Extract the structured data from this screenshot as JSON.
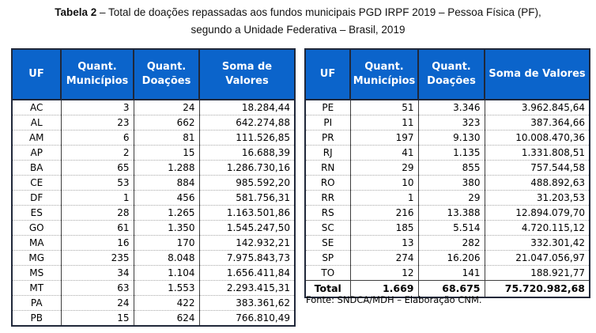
{
  "title": {
    "bold": "Tabela 2",
    "line1_rest": " – Total de doações repassadas aos fundos municipais PGD IRPF 2019 – Pessoa Física (PF),",
    "line2": "segundo a Unidade Federativa – Brasil, 2019"
  },
  "columns": [
    "UF",
    "Quant. Municípios",
    "Quant. Doações",
    "Soma de Valores"
  ],
  "left_table": {
    "rows": [
      [
        "AC",
        "3",
        "24",
        "18.284,44"
      ],
      [
        "AL",
        "23",
        "662",
        "642.274,88"
      ],
      [
        "AM",
        "6",
        "81",
        "111.526,85"
      ],
      [
        "AP",
        "2",
        "15",
        "16.688,39"
      ],
      [
        "BA",
        "65",
        "1.288",
        "1.286.730,16"
      ],
      [
        "CE",
        "53",
        "884",
        "985.592,20"
      ],
      [
        "DF",
        "1",
        "456",
        "581.756,31"
      ],
      [
        "ES",
        "28",
        "1.265",
        "1.163.501,86"
      ],
      [
        "GO",
        "61",
        "1.350",
        "1.545.247,50"
      ],
      [
        "MA",
        "16",
        "170",
        "142.932,21"
      ],
      [
        "MG",
        "235",
        "8.048",
        "7.975.843,73"
      ],
      [
        "MS",
        "34",
        "1.104",
        "1.656.411,84"
      ],
      [
        "MT",
        "63",
        "1.553",
        "2.293.415,31"
      ],
      [
        "PA",
        "24",
        "422",
        "383.361,62"
      ],
      [
        "PB",
        "15",
        "624",
        "766.810,49"
      ]
    ]
  },
  "right_table": {
    "rows": [
      [
        "PE",
        "51",
        "3.346",
        "3.962.845,64"
      ],
      [
        "PI",
        "11",
        "323",
        "387.364,66"
      ],
      [
        "PR",
        "197",
        "9.130",
        "10.008.470,36"
      ],
      [
        "RJ",
        "41",
        "1.135",
        "1.331.808,51"
      ],
      [
        "RN",
        "29",
        "855",
        "757.544,58"
      ],
      [
        "RO",
        "10",
        "380",
        "488.892,63"
      ],
      [
        "RR",
        "1",
        "29",
        "31.203,53"
      ],
      [
        "RS",
        "216",
        "13.388",
        "12.894.079,70"
      ],
      [
        "SC",
        "185",
        "5.514",
        "4.720.115,12"
      ],
      [
        "SE",
        "13",
        "282",
        "332.301,42"
      ],
      [
        "SP",
        "274",
        "16.206",
        "21.047.056,97"
      ],
      [
        "TO",
        "12",
        "141",
        "188.921,77"
      ]
    ],
    "total": [
      "Total",
      "1.669",
      "68.675",
      "75.720.982,68"
    ]
  },
  "footer": {
    "source": "Fonte: SNDCA/MDH – Elaboração CNM."
  },
  "colors": {
    "header_bg": "#0B64CB",
    "header_text": "#FFFFFF",
    "border_dark": "#20283A",
    "row_divider_dotted": "#A8A8A8",
    "column_divider": "#3F3F3F"
  }
}
